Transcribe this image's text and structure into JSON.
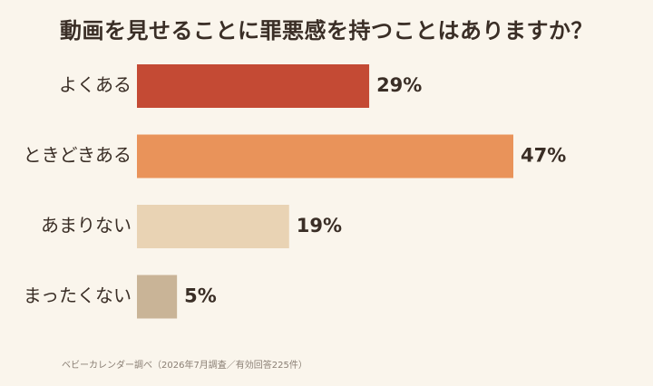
{
  "title": "動画を見せることに罪悪感を持つことはありますか？",
  "source": "ベビーカレンダー調べ（2026年7月調査／有効回答225件）",
  "chart_data": {
    "type": "bar",
    "orientation": "horizontal",
    "categories": [
      "よくある",
      "ときどきある",
      "あまりない",
      "まったくない"
    ],
    "values": [
      29,
      47,
      19,
      5
    ],
    "value_suffix": "%",
    "colors": [
      "#c44a34",
      "#e9935a",
      "#e9d3b4",
      "#c9b497"
    ],
    "title": "動画を見せることに罪悪感を持つことはありますか？",
    "xlabel": "",
    "ylabel": "",
    "xlim": [
      0,
      47
    ],
    "grid": false,
    "legend": "none"
  }
}
